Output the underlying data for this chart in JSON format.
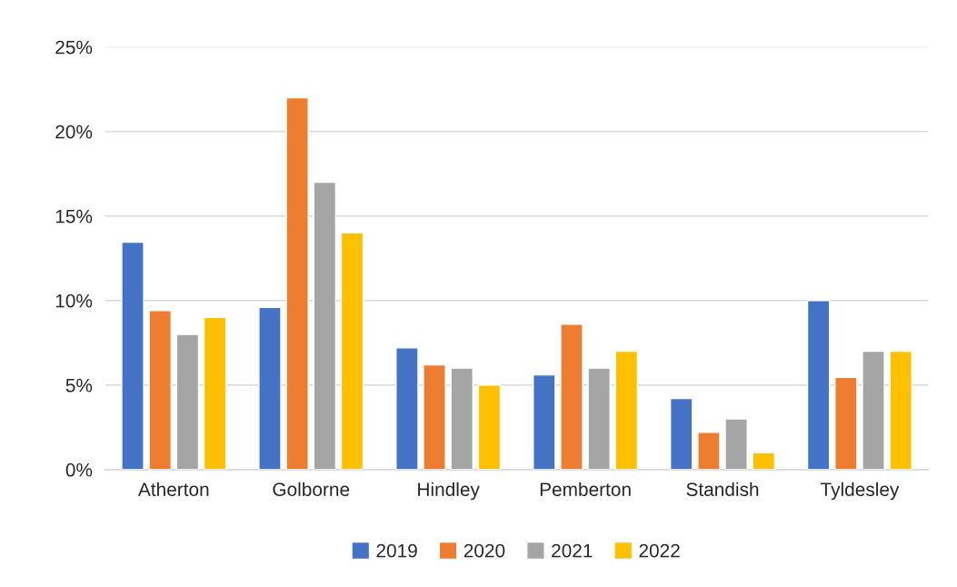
{
  "chart_data": {
    "type": "bar",
    "categories": [
      "Atherton",
      "Golborne",
      "Hindley",
      "Pemberton",
      "Standish",
      "Tyldesley"
    ],
    "series": [
      {
        "name": "2019",
        "color": "#4472c4",
        "values": [
          13.45,
          9.6,
          7.2,
          5.6,
          4.2,
          10.0
        ]
      },
      {
        "name": "2020",
        "color": "#ed7d31",
        "values": [
          9.4,
          22.0,
          6.2,
          8.6,
          2.2,
          5.45
        ]
      },
      {
        "name": "2021",
        "color": "#a5a5a5",
        "values": [
          8.0,
          17.0,
          6.0,
          6.0,
          3.0,
          7.0
        ]
      },
      {
        "name": "2022",
        "color": "#ffc000",
        "values": [
          9.0,
          14.0,
          5.0,
          7.0,
          1.0,
          7.0
        ]
      }
    ],
    "ylim": [
      0,
      25
    ],
    "yticks": [
      {
        "value": 0,
        "label": "0%"
      },
      {
        "value": 5,
        "label": "5%"
      },
      {
        "value": 10,
        "label": "10%"
      },
      {
        "value": 15,
        "label": "15%"
      },
      {
        "value": 20,
        "label": "20%"
      },
      {
        "value": 25,
        "label": "25%"
      }
    ],
    "grid": "y",
    "legend": "bottom"
  }
}
